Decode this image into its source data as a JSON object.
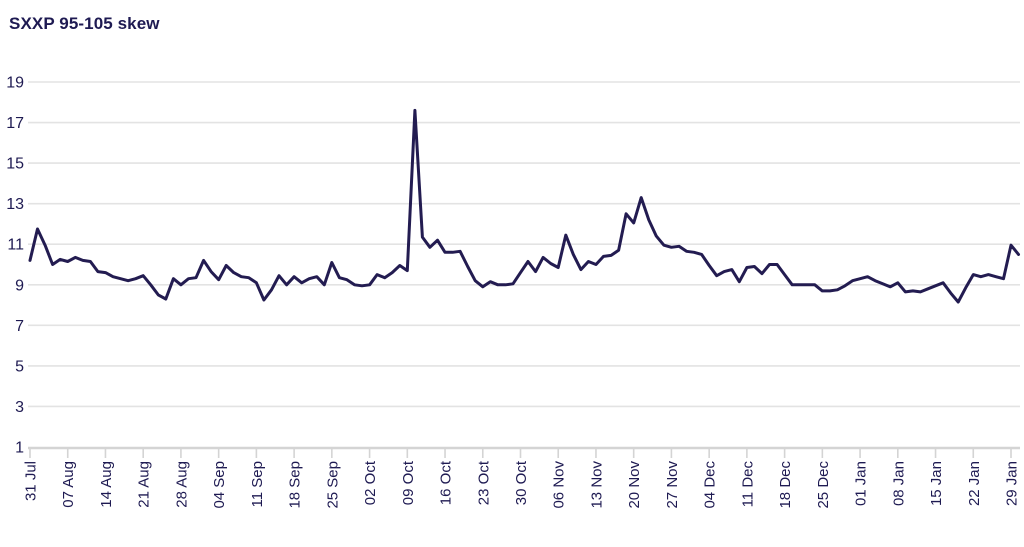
{
  "title": "SXXP 95-105 skew",
  "colors": {
    "line": "#231c51",
    "text": "#1e1a52",
    "grid": "#e3e3e3",
    "axis": "#d4d4d4",
    "background": "#ffffff"
  },
  "chart_data": {
    "type": "line",
    "title": "SXXP 95-105 skew",
    "xlabel": "",
    "ylabel": "",
    "ylim": [
      1,
      19
    ],
    "y_ticks": [
      1,
      3,
      5,
      7,
      9,
      11,
      13,
      15,
      17,
      19
    ],
    "x_tick_labels": [
      "31 Jul",
      "07 Aug",
      "14 Aug",
      "21 Aug",
      "28 Aug",
      "04 Sep",
      "11 Sep",
      "18 Sep",
      "25 Sep",
      "02 Oct",
      "09 Oct",
      "16 Oct",
      "23 Oct",
      "30 Oct",
      "06 Nov",
      "13 Nov",
      "20 Nov",
      "27 Nov",
      "04 Dec",
      "11 Dec",
      "18 Dec",
      "25 Dec",
      "01 Jan",
      "08 Jan",
      "15 Jan",
      "22 Jan",
      "29 Jan"
    ],
    "points_per_tick": 5,
    "grid": "horizontal",
    "legend_position": "none",
    "series": [
      {
        "name": "SXXP 95-105 skew",
        "values": [
          10.2,
          11.75,
          10.95,
          10.0,
          10.25,
          10.15,
          10.35,
          10.2,
          10.15,
          9.65,
          9.6,
          9.4,
          9.3,
          9.2,
          9.3,
          9.45,
          9.0,
          8.5,
          8.3,
          9.3,
          9.0,
          9.3,
          9.35,
          10.2,
          9.65,
          9.25,
          9.95,
          9.6,
          9.4,
          9.35,
          9.1,
          8.25,
          8.75,
          9.45,
          9.0,
          9.4,
          9.1,
          9.3,
          9.4,
          9.0,
          10.1,
          9.35,
          9.25,
          9.0,
          8.95,
          9.0,
          9.5,
          9.35,
          9.6,
          9.95,
          9.7,
          17.6,
          11.35,
          10.85,
          11.2,
          10.6,
          10.6,
          10.65,
          9.9,
          9.2,
          8.9,
          9.15,
          9.0,
          9.0,
          9.05,
          9.6,
          10.15,
          9.65,
          10.35,
          10.05,
          9.85,
          11.45,
          10.5,
          9.75,
          10.15,
          10.0,
          10.4,
          10.45,
          10.7,
          12.5,
          12.05,
          13.3,
          12.2,
          11.4,
          10.95,
          10.85,
          10.9,
          10.65,
          10.6,
          10.5,
          9.95,
          9.45,
          9.65,
          9.75,
          9.15,
          9.85,
          9.9,
          9.55,
          10.0,
          10.0,
          9.5,
          9.0,
          9.0,
          9.0,
          9.0,
          8.7,
          8.7,
          8.75,
          8.95,
          9.2,
          9.3,
          9.4,
          9.2,
          9.05,
          8.9,
          9.1,
          8.65,
          8.7,
          8.65,
          8.8,
          8.95,
          9.1,
          8.6,
          8.15,
          8.85,
          9.5,
          9.4,
          9.5,
          9.4,
          9.3,
          10.95,
          10.5
        ]
      }
    ]
  }
}
